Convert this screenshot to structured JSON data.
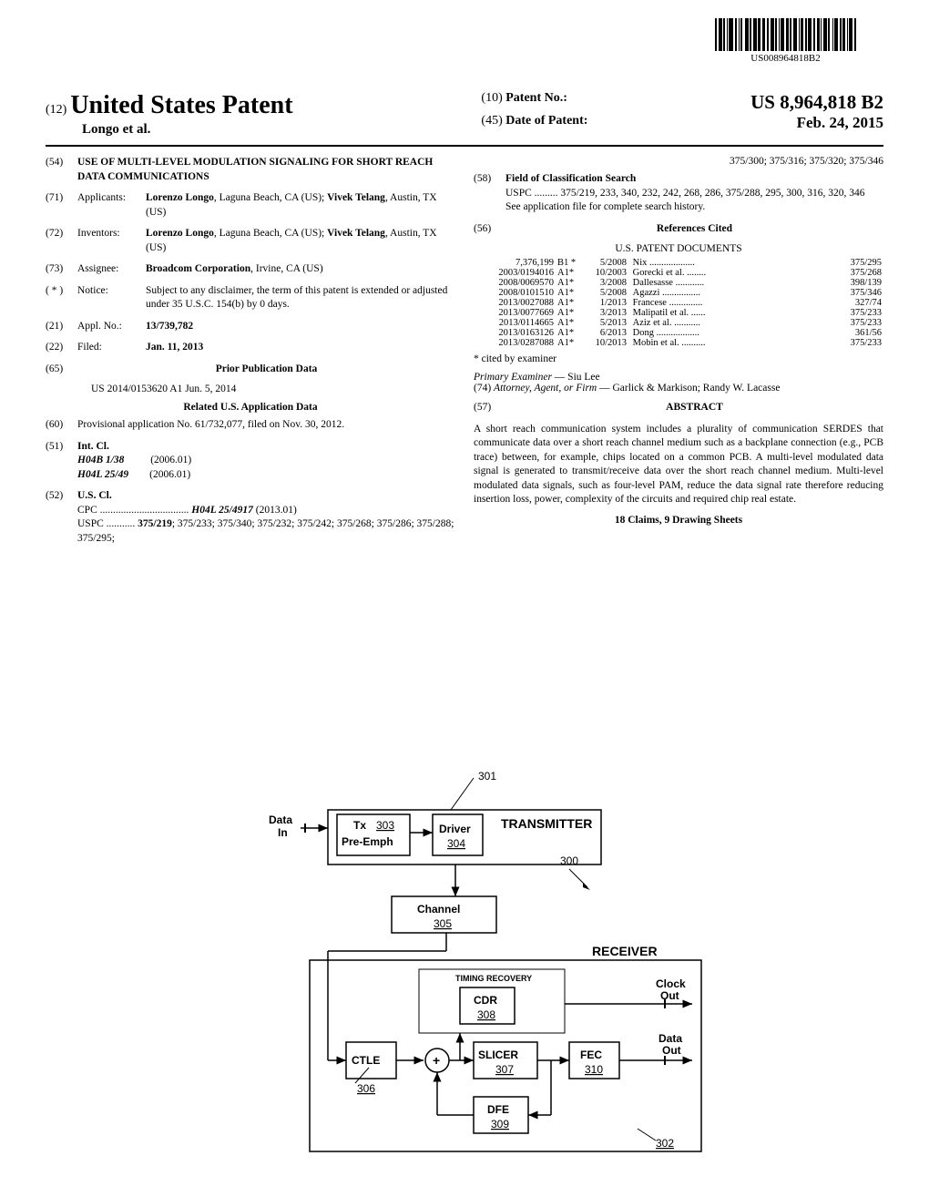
{
  "barcode_text": "US008964818B2",
  "header": {
    "prefix": "(12)",
    "title": "United States Patent",
    "authors": "Longo et al.",
    "patent_no_prefix": "(10)",
    "patent_no_label": "Patent No.:",
    "patent_no": "US 8,964,818 B2",
    "date_prefix": "(45)",
    "date_label": "Date of Patent:",
    "date": "Feb. 24, 2015"
  },
  "left": {
    "title_num": "(54)",
    "title": "USE OF MULTI-LEVEL MODULATION SIGNALING FOR SHORT REACH DATA COMMUNICATIONS",
    "applicants_num": "(71)",
    "applicants_label": "Applicants:",
    "applicants": "Lorenzo Longo, Laguna Beach, CA (US); Vivek Telang, Austin, TX (US)",
    "inventors_num": "(72)",
    "inventors_label": "Inventors:",
    "inventors": "Lorenzo Longo, Laguna Beach, CA (US); Vivek Telang, Austin, TX (US)",
    "assignee_num": "(73)",
    "assignee_label": "Assignee:",
    "assignee": "Broadcom Corporation, Irvine, CA (US)",
    "notice_num": "( * )",
    "notice_label": "Notice:",
    "notice": "Subject to any disclaimer, the term of this patent is extended or adjusted under 35 U.S.C. 154(b) by 0 days.",
    "appl_num": "(21)",
    "appl_label": "Appl. No.:",
    "appl": "13/739,782",
    "filed_num": "(22)",
    "filed_label": "Filed:",
    "filed": "Jan. 11, 2013",
    "prior_num": "(65)",
    "prior_title": "Prior Publication Data",
    "prior_data": "US 2014/0153620 A1     Jun. 5, 2014",
    "related_title": "Related U.S. Application Data",
    "provisional_num": "(60)",
    "provisional": "Provisional application No. 61/732,077, filed on Nov. 30, 2012.",
    "intcl_num": "(51)",
    "intcl_label": "Int. Cl.",
    "intcl1": "H04B 1/38",
    "intcl1_year": "(2006.01)",
    "intcl2": "H04L 25/49",
    "intcl2_year": "(2006.01)",
    "uscl_num": "(52)",
    "uscl_label": "U.S. Cl.",
    "cpc": "CPC .................................. H04L 25/4917 (2013.01)",
    "uspc": "USPC ........... 375/219; 375/233; 375/340; 375/232; 375/242; 375/268; 375/286; 375/288; 375/295;"
  },
  "right": {
    "uspc_cont": "375/300; 375/316; 375/320; 375/346",
    "search_num": "(58)",
    "search_label": "Field of Classification Search",
    "search_uspc": "USPC ......... 375/219, 233, 340, 232, 242, 268, 286, 375/288, 295, 300, 316, 320, 346",
    "search_note": "See application file for complete search history.",
    "refs_num": "(56)",
    "refs_title": "References Cited",
    "refs_sub": "U.S. PATENT DOCUMENTS",
    "refs": [
      {
        "id": "7,376,199",
        "type": "B1 *",
        "date": "5/2008",
        "name": "Nix",
        "cls": "375/295"
      },
      {
        "id": "2003/0194016",
        "type": "A1*",
        "date": "10/2003",
        "name": "Gorecki et al.",
        "cls": "375/268"
      },
      {
        "id": "2008/0069570",
        "type": "A1*",
        "date": "3/2008",
        "name": "Dallesasse",
        "cls": "398/139"
      },
      {
        "id": "2008/0101510",
        "type": "A1*",
        "date": "5/2008",
        "name": "Agazzi",
        "cls": "375/346"
      },
      {
        "id": "2013/0027088",
        "type": "A1*",
        "date": "1/2013",
        "name": "Francese",
        "cls": "327/74"
      },
      {
        "id": "2013/0077669",
        "type": "A1*",
        "date": "3/2013",
        "name": "Malipatil et al.",
        "cls": "375/233"
      },
      {
        "id": "2013/0114665",
        "type": "A1*",
        "date": "5/2013",
        "name": "Aziz et al.",
        "cls": "375/233"
      },
      {
        "id": "2013/0163126",
        "type": "A1*",
        "date": "6/2013",
        "name": "Dong",
        "cls": "361/56"
      },
      {
        "id": "2013/0287088",
        "type": "A1*",
        "date": "10/2013",
        "name": "Mobin et al.",
        "cls": "375/233"
      }
    ],
    "cited_note": "* cited by examiner",
    "examiner_label": "Primary Examiner",
    "examiner": "Siu Lee",
    "attorney_num": "(74)",
    "attorney_label": "Attorney, Agent, or Firm",
    "attorney": "Garlick & Markison; Randy W. Lacasse",
    "abstract_num": "(57)",
    "abstract_title": "ABSTRACT",
    "abstract": "A short reach communication system includes a plurality of communication SERDES that communicate data over a short reach channel medium such as a backplane connection (e.g., PCB trace) between, for example, chips located on a common PCB. A multi-level modulated data signal is generated to transmit/receive data over the short reach channel medium. Multi-level modulated data signals, such as four-level PAM, reduce the data signal rate therefore reducing insertion loss, power, complexity of the circuits and required chip real estate.",
    "claims": "18 Claims, 9 Drawing Sheets"
  },
  "diagram": {
    "ref_301": "301",
    "data_in": "Data In",
    "tx": "Tx",
    "tx_ref": "303",
    "pre_emph": "Pre-Emph",
    "driver": "Driver",
    "driver_ref": "304",
    "transmitter": "TRANSMITTER",
    "ref_300": "300",
    "channel": "Channel",
    "channel_ref": "305",
    "receiver": "RECEIVER",
    "timing_recovery": "TIMING RECOVERY",
    "cdr": "CDR",
    "cdr_ref": "308",
    "clock_out": "Clock Out",
    "ctle": "CTLE",
    "ctle_ref": "306",
    "plus": "+",
    "slicer": "SLICER",
    "slicer_ref": "307",
    "fec": "FEC",
    "fec_ref": "310",
    "data_out": "Data Out",
    "dfe": "DFE",
    "dfe_ref": "309",
    "ref_302": "302"
  }
}
